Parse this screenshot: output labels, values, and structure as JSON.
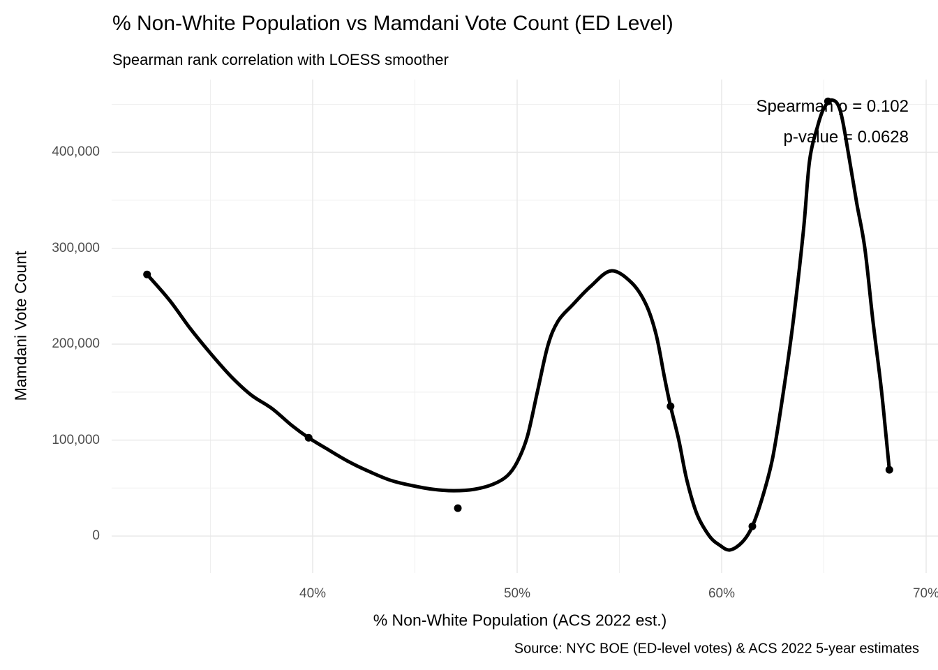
{
  "chart_data": {
    "type": "scatter",
    "title": "% Non-White Population vs Mamdani Vote Count (ED Level)",
    "subtitle": "Spearman rank correlation with LOESS smoother",
    "xlabel": "% Non-White Population (ACS 2022 est.)",
    "ylabel": "Mamdani Vote Count",
    "caption": "Source: NYC BOE (ED-level votes) & ACS 2022 5-year estimates",
    "annotation": {
      "line1": "Spearman ρ = 0.102",
      "line2": "p-value = 0.0628"
    },
    "stats": {
      "spearman_rho": 0.102,
      "p_value": 0.0628
    },
    "x_ticks": [
      {
        "value": 40,
        "label": "40%"
      },
      {
        "value": 50,
        "label": "50%"
      },
      {
        "value": 60,
        "label": "60%"
      },
      {
        "value": 70,
        "label": "70%"
      }
    ],
    "x_minor": [
      35,
      45,
      55,
      65
    ],
    "y_ticks": [
      {
        "value": 0,
        "label": "0"
      },
      {
        "value": 100000,
        "label": "100,000"
      },
      {
        "value": 200000,
        "label": "200,000"
      },
      {
        "value": 300000,
        "label": "300,000"
      },
      {
        "value": 400000,
        "label": "400,000"
      }
    ],
    "y_minor": [
      50000,
      150000,
      250000,
      350000,
      450000
    ],
    "xlim": [
      30.17,
      70.58
    ],
    "ylim": [
      -38500,
      475800
    ],
    "grid": true,
    "legend": false,
    "points": [
      {
        "x": 31.9,
        "y": 272700
      },
      {
        "x": 39.8,
        "y": 102500
      },
      {
        "x": 47.1,
        "y": 29100
      },
      {
        "x": 57.5,
        "y": 135300
      },
      {
        "x": 61.5,
        "y": 10200
      },
      {
        "x": 65.2,
        "y": 453100
      },
      {
        "x": 68.2,
        "y": 69100
      }
    ],
    "loess_curve": [
      [
        31.9,
        272700
      ],
      [
        33.0,
        245800
      ],
      [
        34.0,
        216700
      ],
      [
        35.0,
        190500
      ],
      [
        36.0,
        166500
      ],
      [
        37.0,
        146900
      ],
      [
        38.0,
        133100
      ],
      [
        39.0,
        114900
      ],
      [
        39.8,
        102500
      ],
      [
        40.8,
        89500
      ],
      [
        41.8,
        77100
      ],
      [
        42.8,
        66900
      ],
      [
        43.8,
        58200
      ],
      [
        44.9,
        52400
      ],
      [
        45.9,
        48700
      ],
      [
        46.9,
        47300
      ],
      [
        47.9,
        48700
      ],
      [
        48.8,
        53800
      ],
      [
        49.5,
        62500
      ],
      [
        50.0,
        77100
      ],
      [
        50.5,
        104000
      ],
      [
        51.0,
        151300
      ],
      [
        51.5,
        198500
      ],
      [
        52.0,
        224000
      ],
      [
        52.7,
        240700
      ],
      [
        53.6,
        260400
      ],
      [
        54.6,
        276400
      ],
      [
        55.6,
        264000
      ],
      [
        56.3,
        241500
      ],
      [
        56.8,
        209500
      ],
      [
        57.2,
        165800
      ],
      [
        57.5,
        135300
      ],
      [
        57.9,
        100400
      ],
      [
        58.3,
        58200
      ],
      [
        58.8,
        22500
      ],
      [
        59.4,
        0
      ],
      [
        59.9,
        -9500
      ],
      [
        60.4,
        -14500
      ],
      [
        61.0,
        -6500
      ],
      [
        61.5,
        10200
      ],
      [
        62.0,
        40700
      ],
      [
        62.5,
        82200
      ],
      [
        63.0,
        147600
      ],
      [
        63.5,
        224000
      ],
      [
        64.0,
        318500
      ],
      [
        64.3,
        391300
      ],
      [
        64.7,
        427600
      ],
      [
        65.0,
        445800
      ],
      [
        65.4,
        454500
      ],
      [
        65.8,
        443600
      ],
      [
        66.2,
        398500
      ],
      [
        66.6,
        347600
      ],
      [
        67.0,
        300400
      ],
      [
        67.4,
        224000
      ],
      [
        67.8,
        154900
      ],
      [
        68.05,
        101800
      ],
      [
        68.2,
        69100
      ]
    ]
  },
  "colors": {
    "background": "#ffffff",
    "grid_major": "#e7e7e7",
    "grid_minor": "#efefef",
    "line": "#000000",
    "point": "#000000",
    "tick_label": "#4d4d4d",
    "text": "#000000"
  }
}
